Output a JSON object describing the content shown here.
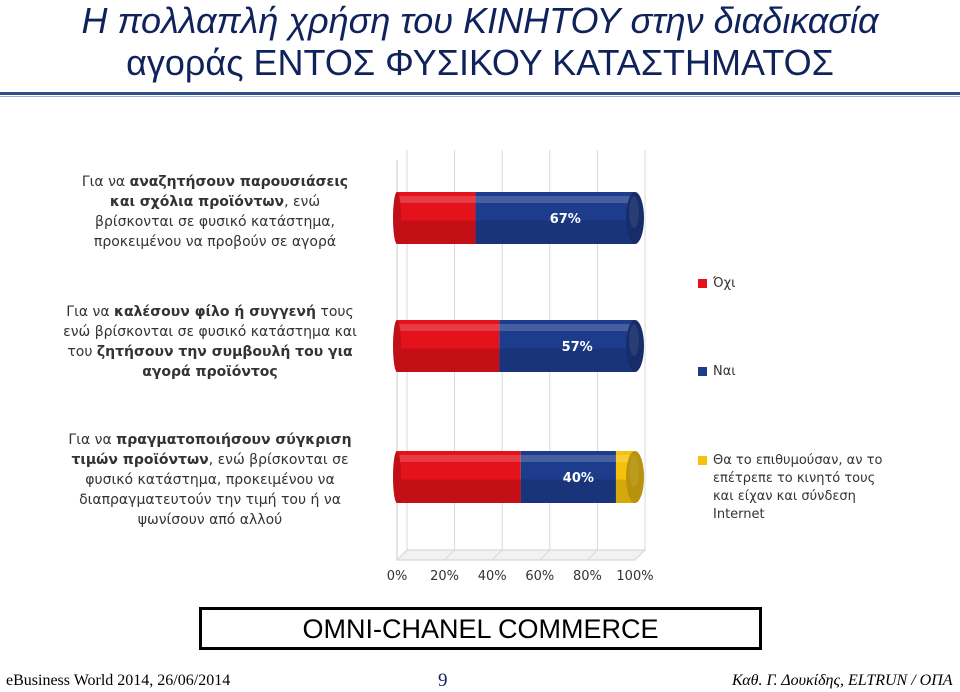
{
  "header": {
    "title_line1": "Η πολλαπλή χρήση του ΚΙΝΗΤΟΥ στην διαδικασία",
    "title_line2": "αγοράς ΕΝΤΟΣ ΦΥΣΙΚΟΥ ΚΑΤΑΣΤΗΜΑΤΟΣ"
  },
  "chart_data": {
    "type": "bar",
    "orientation": "horizontal",
    "stacked": true,
    "categories": [
      "Για να αναζητήσουν παρουσιάσεις και σχόλια προϊόντων, ενώ βρίσκονται σε φυσικό κατάστημα, προκειμένου να προβούν σε αγορά",
      "Για να καλέσουν φίλο ή συγγενή τους ενώ βρίσκονται σε φυσικό κατάστημα και του ζητήσουν την συμβουλή του για αγορά προϊόντος",
      "Για να πραγματοποιήσουν σύγκριση τιμών προϊόντων, ενώ βρίσκονται σε φυσικό κατάστημα, προκειμένου να διαπραγματευτούν την τιμή του ή να ψωνίσουν από αλλού"
    ],
    "series": [
      {
        "name": "Όχι",
        "color": "#e3121b",
        "values": [
          33,
          43,
          52
        ]
      },
      {
        "name": "Ναι",
        "color": "#1d3c8c",
        "values": [
          67,
          57,
          40
        ]
      },
      {
        "name": "Θα το επιθυμούσαν, αν το επέτρεπε το κινητό τους και είχαν και σύνδεση Internet",
        "color": "#f4c20d",
        "values": [
          0,
          0,
          8
        ]
      }
    ],
    "data_labels": [
      "67%",
      "57%",
      "40%"
    ],
    "xlim": [
      0,
      100
    ],
    "x_ticks": [
      "0%",
      "20%",
      "40%",
      "60%",
      "80%",
      "100%"
    ],
    "grid": true,
    "legend_position": "right"
  },
  "questions": [
    {
      "lines": [
        [
          {
            "t": "Για να ",
            "b": false
          },
          {
            "t": "αναζητήσουν παρουσιάσεις",
            "b": true
          }
        ],
        [
          {
            "t": "και σχόλια προϊόντων",
            "b": true
          },
          {
            "t": ", ενώ",
            "b": false
          }
        ],
        [
          {
            "t": "βρίσκονται σε φυσικό κατάστημα,",
            "b": false
          }
        ],
        [
          {
            "t": "προκειμένου να προβούν σε αγορά",
            "b": false
          }
        ]
      ]
    },
    {
      "lines": [
        [
          {
            "t": "Για να ",
            "b": false
          },
          {
            "t": "καλέσουν φίλο ή συγγενή",
            "b": true
          },
          {
            "t": " τους",
            "b": false
          }
        ],
        [
          {
            "t": "ενώ βρίσκονται σε φυσικό κατάστημα και",
            "b": false
          }
        ],
        [
          {
            "t": "του ",
            "b": false
          },
          {
            "t": "ζητήσουν την συμβουλή του για",
            "b": true
          }
        ],
        [
          {
            "t": "αγορά προϊόντος",
            "b": true
          }
        ]
      ]
    },
    {
      "lines": [
        [
          {
            "t": "Για να ",
            "b": false
          },
          {
            "t": "πραγματοποιήσουν σύγκριση",
            "b": true
          }
        ],
        [
          {
            "t": "τιμών προϊόντων",
            "b": true
          },
          {
            "t": ", ενώ βρίσκονται σε",
            "b": false
          }
        ],
        [
          {
            "t": "φυσικό κατάστημα, προκειμένου να",
            "b": false
          }
        ],
        [
          {
            "t": "διαπραγματευτούν την τιμή του ή να",
            "b": false
          }
        ],
        [
          {
            "t": "ψωνίσουν από αλλού",
            "b": false
          }
        ]
      ]
    }
  ],
  "box_label": "OMNI-CHANEL COMMERCE",
  "footer": {
    "left": "eBusiness World 2014, 26/06/2014",
    "page": "9",
    "right": "Καθ. Γ. Δουκίδης, ELTRUN / ΟΠΑ"
  }
}
